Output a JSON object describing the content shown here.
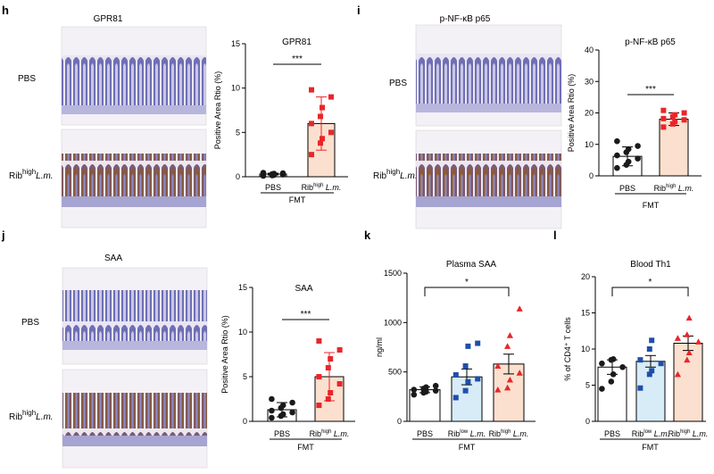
{
  "panels": {
    "h": {
      "letter": "h",
      "image_title": "GPR81",
      "row1_label": "PBS",
      "row2_main": "Rib",
      "row2_sup": "high",
      "row2_italic": "L.m."
    },
    "i": {
      "letter": "i",
      "image_title": "p-NF-κB p65",
      "row1_label": "PBS",
      "row2_main": "Rib",
      "row2_sup": "high",
      "row2_italic": "L.m."
    },
    "j": {
      "letter": "j",
      "image_title": "SAA",
      "row1_label": "PBS",
      "row2_main": "Rib",
      "row2_sup": "high",
      "row2_italic": "L.m."
    },
    "k": {
      "letter": "k"
    },
    "l": {
      "letter": "l"
    }
  },
  "colors": {
    "pbs_dot": "#1a1a1a",
    "low_dot": "#1f4fa8",
    "high_dot": "#e8262a",
    "pbs_bar": "#ffffff",
    "low_bar": "#d8ecf8",
    "high_bar": "#fbe0cf",
    "axis": "#000000"
  },
  "chart_data": [
    {
      "id": "h",
      "type": "bar",
      "title": "GPR81",
      "ylabel": "Positive Area Rtio (%)",
      "ylim": [
        0,
        15
      ],
      "yticks": [
        0,
        5,
        10,
        15
      ],
      "categories": [
        {
          "main": "PBS"
        },
        {
          "main": "Rib",
          "sup": "high",
          "it": "L.m."
        }
      ],
      "group_label": "FMT",
      "significance": "***",
      "values": [
        0.3,
        6.0
      ],
      "errors": [
        0.1,
        3.0
      ],
      "points": [
        [
          0.1,
          0.15,
          0.2,
          0.25,
          0.3,
          0.3,
          0.35,
          0.4,
          0.45
        ],
        [
          2.5,
          3.8,
          4.3,
          5.0,
          6.0,
          6.8,
          7.8,
          9.0,
          9.8
        ]
      ]
    },
    {
      "id": "i",
      "type": "bar",
      "title": "p-NF-κB p65",
      "ylabel": "Positive Area Rtio (%)",
      "ylim": [
        0,
        40
      ],
      "yticks": [
        0,
        10,
        20,
        30,
        40
      ],
      "categories": [
        {
          "main": "PBS"
        },
        {
          "main": "Rib",
          "sup": "high",
          "it": "L.m."
        }
      ],
      "group_label": "FMT",
      "significance": "***",
      "values": [
        6.2,
        18.0
      ],
      "errors": [
        3.0,
        2.0
      ],
      "points": [
        [
          2.5,
          3.5,
          4.5,
          5.5,
          6.5,
          7.5,
          8.5,
          9.5,
          11.0
        ],
        [
          15.5,
          16.5,
          17.2,
          17.8,
          18.2,
          18.8,
          19.4,
          20.0,
          20.8
        ]
      ]
    },
    {
      "id": "j",
      "type": "bar",
      "title": "SAA",
      "ylabel": "Positive Area Rtio (%)",
      "ylim": [
        0,
        15
      ],
      "yticks": [
        0,
        5,
        10,
        15
      ],
      "categories": [
        {
          "main": "PBS"
        },
        {
          "main": "Rib",
          "sup": "high",
          "it": "L.m."
        }
      ],
      "group_label": "FMT",
      "significance": "***",
      "values": [
        1.3,
        5.0
      ],
      "errors": [
        0.8,
        2.7
      ],
      "points": [
        [
          0.4,
          0.6,
          0.8,
          1.0,
          1.2,
          1.5,
          1.8,
          2.1,
          2.5
        ],
        [
          1.8,
          2.5,
          3.2,
          4.2,
          5.0,
          6.0,
          7.0,
          8.0,
          9.0
        ]
      ]
    },
    {
      "id": "k",
      "type": "bar",
      "title": "Plasma SAA",
      "ylabel": "ng/ml",
      "ylim": [
        0,
        1500
      ],
      "yticks": [
        0,
        500,
        1000,
        1500
      ],
      "categories": [
        {
          "main": "PBS"
        },
        {
          "main": "Rib",
          "sup": "low",
          "it": "L.m."
        },
        {
          "main": "Rib",
          "sup": "high",
          "it": "L.m."
        }
      ],
      "group_label": "FMT",
      "significance": "*",
      "values": [
        320,
        450,
        580
      ],
      "errors": [
        30,
        80,
        100
      ],
      "points": [
        [
          270,
          290,
          300,
          310,
          320,
          330,
          345,
          360
        ],
        [
          240,
          310,
          400,
          430,
          470,
          560,
          760,
          790
        ],
        [
          320,
          340,
          420,
          490,
          560,
          760,
          870,
          1140
        ]
      ]
    },
    {
      "id": "l",
      "type": "bar",
      "title": "Blood Th1",
      "ylabel": "% of CD4⁺ T cells",
      "ylim": [
        0,
        20
      ],
      "yticks": [
        0,
        5,
        10,
        15,
        20
      ],
      "categories": [
        {
          "main": "PBS"
        },
        {
          "main": "Rib",
          "sup": "low",
          "it": "L.m."
        },
        {
          "main": "Rib",
          "sup": "high",
          "it": "L.m."
        }
      ],
      "group_label": "FMT",
      "significance": "*",
      "values": [
        7.5,
        8.3,
        10.8
      ],
      "errors": [
        1.0,
        0.8,
        1.0
      ],
      "points": [
        [
          4.5,
          5.5,
          6.5,
          7.5,
          8.0,
          8.5,
          8.6
        ],
        [
          4.6,
          6.5,
          7.0,
          8.0,
          8.5,
          10.0,
          11.2
        ],
        [
          6.5,
          8.5,
          9.5,
          11.0,
          11.5,
          12.0,
          14.3
        ]
      ]
    }
  ]
}
